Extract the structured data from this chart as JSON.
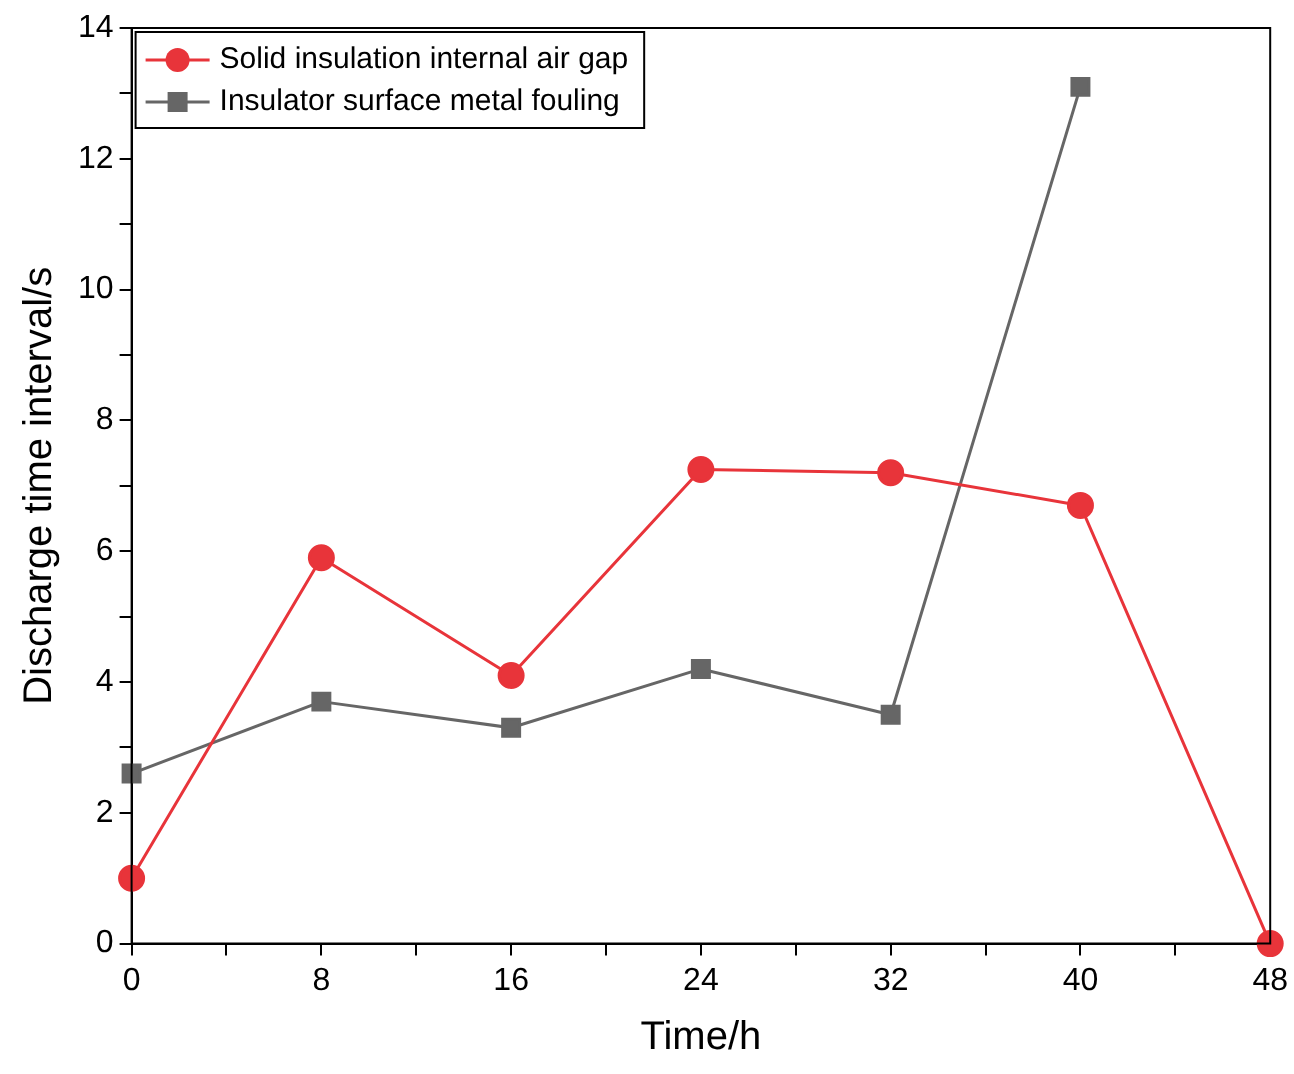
{
  "chart_data": {
    "type": "line",
    "xlabel": "Time/h",
    "ylabel": "Discharge time interval/s",
    "x": [
      0,
      8,
      16,
      24,
      32,
      40,
      48
    ],
    "series": [
      {
        "name": "Solid insulation internal air gap",
        "color": "#e8343a",
        "marker": "circle",
        "values": [
          1,
          5.9,
          4.1,
          7.25,
          7.2,
          6.7,
          0
        ]
      },
      {
        "name": "Insulator surface metal fouling",
        "color": "#666666",
        "marker": "square",
        "values": [
          2.6,
          3.7,
          3.3,
          4.2,
          3.5,
          13.1,
          null
        ]
      }
    ],
    "xlim": [
      0,
      48
    ],
    "xticks": [
      0,
      {
        "value": 4,
        "label": null
      },
      8,
      {
        "value": 12,
        "label": null
      },
      16,
      {
        "value": 20,
        "label": null
      },
      24,
      {
        "value": 28,
        "label": null
      },
      32,
      {
        "value": 36,
        "label": null
      },
      40,
      {
        "value": 44,
        "label": null
      },
      48
    ],
    "ylim": [
      0,
      14
    ],
    "yticks": [
      0,
      {
        "value": 1,
        "label": null
      },
      2,
      {
        "value": 3,
        "label": null
      },
      4,
      {
        "value": 5,
        "label": null
      },
      6,
      {
        "value": 7,
        "label": null
      },
      8,
      {
        "value": 9,
        "label": null
      },
      10,
      {
        "value": 11,
        "label": null
      },
      12,
      {
        "value": 13,
        "label": null
      },
      14
    ],
    "grid": false,
    "legend": "top left",
    "line_style": "solid"
  }
}
